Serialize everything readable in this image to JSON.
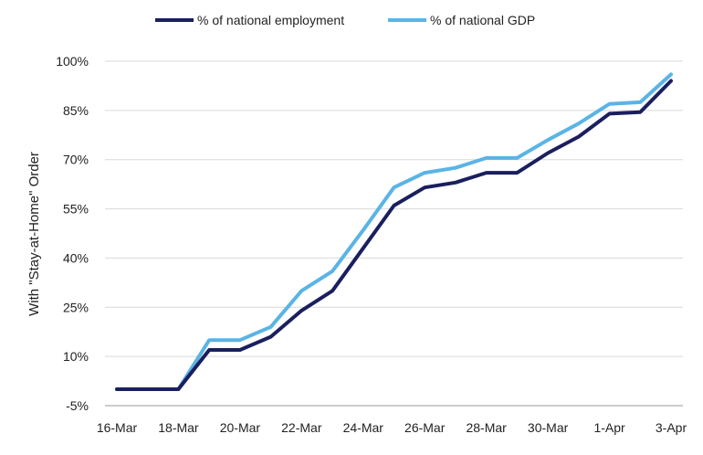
{
  "chart_data": {
    "type": "line",
    "ylabel": "With  \"Stay-at-Home\" Order",
    "ylim": [
      -5,
      100
    ],
    "yticks": [
      -5,
      10,
      25,
      40,
      55,
      70,
      85,
      100
    ],
    "ytick_labels": [
      "-5%",
      "10%",
      "25%",
      "40%",
      "55%",
      "70%",
      "85%",
      "100%"
    ],
    "x": [
      "16-Mar",
      "17-Mar",
      "18-Mar",
      "19-Mar",
      "20-Mar",
      "21-Mar",
      "22-Mar",
      "23-Mar",
      "24-Mar",
      "25-Mar",
      "26-Mar",
      "27-Mar",
      "28-Mar",
      "29-Mar",
      "30-Mar",
      "31-Mar",
      "1-Apr",
      "2-Apr",
      "3-Apr"
    ],
    "xtick_labels": [
      "16-Mar",
      "18-Mar",
      "20-Mar",
      "22-Mar",
      "24-Mar",
      "26-Mar",
      "28-Mar",
      "30-Mar",
      "1-Apr",
      "3-Apr"
    ],
    "grid": "horizontal",
    "legend_position": "top",
    "series": [
      {
        "name": "% of national employment",
        "color": "#1a1f5e",
        "values": [
          0,
          0,
          0,
          12,
          12,
          16,
          24,
          30,
          43,
          56,
          61.5,
          63,
          66,
          66,
          72,
          77,
          84,
          84.5,
          94
        ]
      },
      {
        "name": "% of national GDP",
        "color": "#5ab4e5",
        "values": [
          0,
          0,
          0,
          15,
          15,
          19,
          30,
          36,
          48.5,
          61.5,
          66,
          67.5,
          70.5,
          70.5,
          76,
          81,
          87,
          87.5,
          96
        ]
      }
    ]
  }
}
